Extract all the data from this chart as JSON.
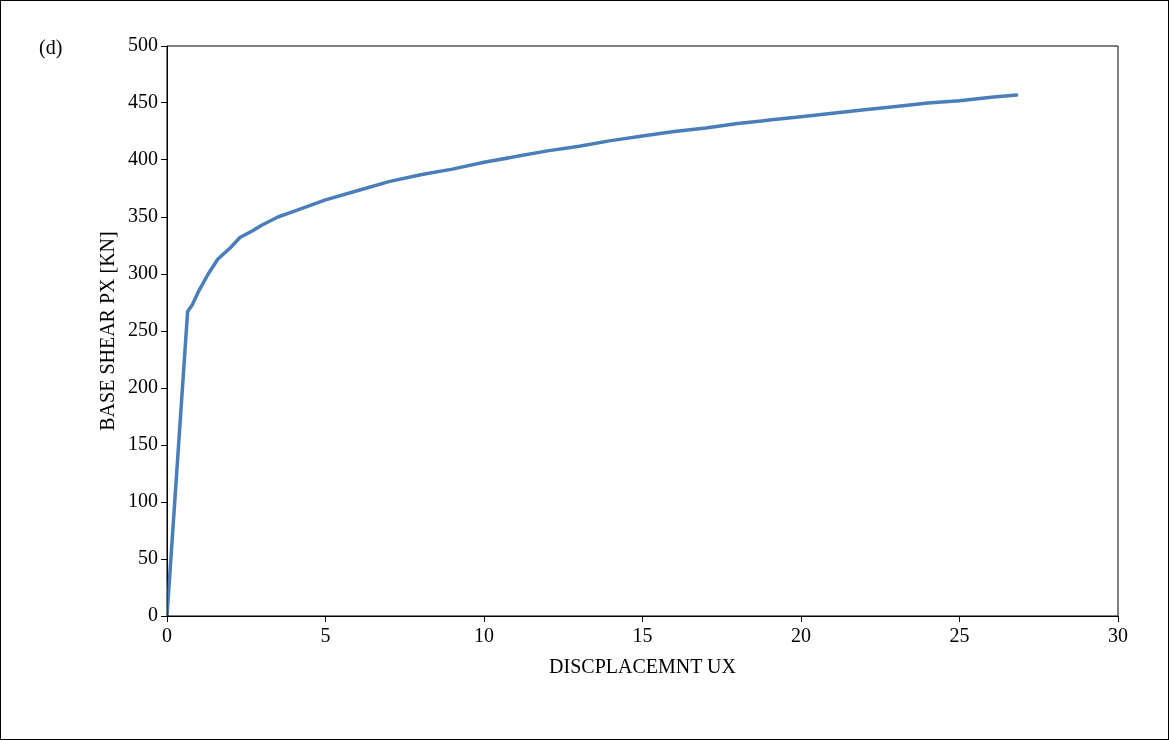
{
  "chart_data": {
    "type": "line",
    "title": "(d)",
    "xlabel": "DISCPLACEMNT UX",
    "ylabel": "BASE SHEAR PX [KN]",
    "x": [
      0,
      0.65,
      0.8,
      1.0,
      1.3,
      1.6,
      2.0,
      2.3,
      2.7,
      3.0,
      3.5,
      4,
      5,
      6,
      7,
      8,
      9,
      10,
      11,
      12,
      13,
      14,
      15,
      16,
      17,
      18,
      19,
      20,
      21,
      22,
      23,
      24,
      25,
      26,
      26.8
    ],
    "series": [
      {
        "color": "#4a7ebb",
        "values": [
          0,
          267,
          273,
          285,
          300,
          313,
          323,
          332,
          338,
          343,
          350,
          355,
          365,
          373,
          381,
          387,
          392,
          398,
          403,
          408,
          412,
          417,
          421,
          425,
          428,
          432,
          435,
          438,
          441,
          444,
          447,
          450,
          452,
          455,
          457
        ]
      }
    ],
    "xlim": [
      0,
      30
    ],
    "xticks": [
      0,
      5,
      10,
      15,
      20,
      25,
      30
    ],
    "ylim": [
      0,
      500
    ],
    "yticks": [
      0,
      50,
      100,
      150,
      200,
      250,
      300,
      350,
      400,
      450,
      500
    ],
    "grid": false,
    "legend": false,
    "marker": "none",
    "line_style": "solid"
  }
}
